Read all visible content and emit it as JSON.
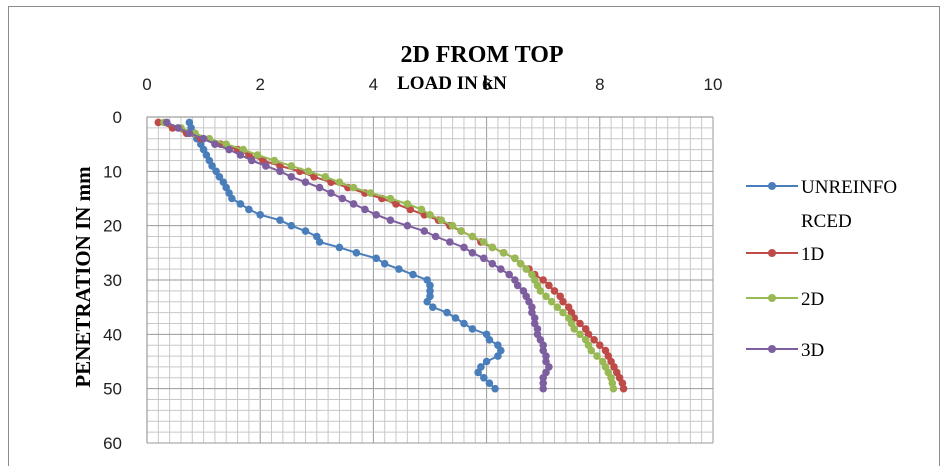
{
  "chart_data": {
    "type": "line",
    "title": "2D FROM TOP",
    "xlabel": "LOAD IN kN",
    "ylabel": "PENETRATION IN mm",
    "xlim": [
      0,
      10
    ],
    "ylim": [
      0,
      60
    ],
    "y_inverted": true,
    "x_axis_position": "top",
    "x_ticks": [
      "0",
      "2",
      "4",
      "6",
      "8",
      "10"
    ],
    "y_ticks": [
      "0",
      "10",
      "20",
      "30",
      "40",
      "50",
      "60"
    ],
    "grid": true,
    "legend_position": "right",
    "series": [
      {
        "name": "UNREINFORCED",
        "legend_lines": [
          "UNREINFO",
          "RCED"
        ],
        "color": "#4a7ebb",
        "points": [
          [
            0.75,
            1
          ],
          [
            0.78,
            2
          ],
          [
            0.82,
            3
          ],
          [
            0.88,
            4
          ],
          [
            0.95,
            5
          ],
          [
            1.0,
            6
          ],
          [
            1.05,
            7
          ],
          [
            1.1,
            8
          ],
          [
            1.15,
            9
          ],
          [
            1.22,
            10
          ],
          [
            1.28,
            11
          ],
          [
            1.35,
            12
          ],
          [
            1.4,
            13
          ],
          [
            1.45,
            14
          ],
          [
            1.5,
            15
          ],
          [
            1.65,
            16
          ],
          [
            1.8,
            17
          ],
          [
            2.0,
            18
          ],
          [
            2.35,
            19
          ],
          [
            2.55,
            20
          ],
          [
            2.8,
            21
          ],
          [
            3.0,
            22
          ],
          [
            3.05,
            23
          ],
          [
            3.4,
            24
          ],
          [
            3.7,
            25
          ],
          [
            4.05,
            26
          ],
          [
            4.2,
            27
          ],
          [
            4.45,
            28
          ],
          [
            4.7,
            29
          ],
          [
            4.95,
            30
          ],
          [
            5.0,
            31
          ],
          [
            5.0,
            32
          ],
          [
            5.0,
            33
          ],
          [
            4.95,
            34
          ],
          [
            5.05,
            35
          ],
          [
            5.3,
            36
          ],
          [
            5.45,
            37
          ],
          [
            5.6,
            38
          ],
          [
            5.75,
            39
          ],
          [
            6.0,
            40
          ],
          [
            6.05,
            41
          ],
          [
            6.2,
            42
          ],
          [
            6.25,
            43
          ],
          [
            6.2,
            44
          ],
          [
            6.0,
            45
          ],
          [
            5.9,
            46
          ],
          [
            5.85,
            47
          ],
          [
            5.95,
            48
          ],
          [
            6.05,
            49
          ],
          [
            6.15,
            50
          ]
        ]
      },
      {
        "name": "1D",
        "color": "#be4b48",
        "points": [
          [
            0.2,
            1
          ],
          [
            0.45,
            2
          ],
          [
            0.7,
            3
          ],
          [
            0.95,
            4
          ],
          [
            1.3,
            5
          ],
          [
            1.6,
            6
          ],
          [
            1.8,
            7
          ],
          [
            2.05,
            8
          ],
          [
            2.35,
            9
          ],
          [
            2.7,
            10
          ],
          [
            2.95,
            11
          ],
          [
            3.25,
            12
          ],
          [
            3.55,
            13
          ],
          [
            3.85,
            14
          ],
          [
            4.15,
            15
          ],
          [
            4.4,
            16
          ],
          [
            4.65,
            17
          ],
          [
            4.9,
            18
          ],
          [
            5.15,
            19
          ],
          [
            5.35,
            20
          ],
          [
            5.55,
            21
          ],
          [
            5.75,
            22
          ],
          [
            5.9,
            23
          ],
          [
            6.1,
            24
          ],
          [
            6.3,
            25
          ],
          [
            6.5,
            26
          ],
          [
            6.6,
            27
          ],
          [
            6.75,
            28
          ],
          [
            6.85,
            29
          ],
          [
            7.0,
            30
          ],
          [
            7.1,
            31
          ],
          [
            7.2,
            32
          ],
          [
            7.3,
            33
          ],
          [
            7.35,
            34
          ],
          [
            7.45,
            35
          ],
          [
            7.5,
            36
          ],
          [
            7.55,
            37
          ],
          [
            7.65,
            38
          ],
          [
            7.75,
            39
          ],
          [
            7.8,
            40
          ],
          [
            7.9,
            41
          ],
          [
            8.0,
            42
          ],
          [
            8.1,
            43
          ],
          [
            8.15,
            44
          ],
          [
            8.2,
            45
          ],
          [
            8.25,
            46
          ],
          [
            8.3,
            47
          ],
          [
            8.35,
            48
          ],
          [
            8.4,
            49
          ],
          [
            8.42,
            50
          ]
        ]
      },
      {
        "name": "2D",
        "color": "#98b954",
        "points": [
          [
            0.3,
            1
          ],
          [
            0.6,
            2
          ],
          [
            0.85,
            3
          ],
          [
            1.1,
            4
          ],
          [
            1.4,
            5
          ],
          [
            1.7,
            6
          ],
          [
            1.95,
            7
          ],
          [
            2.25,
            8
          ],
          [
            2.55,
            9
          ],
          [
            2.85,
            10
          ],
          [
            3.15,
            11
          ],
          [
            3.4,
            12
          ],
          [
            3.65,
            13
          ],
          [
            3.95,
            14
          ],
          [
            4.3,
            15
          ],
          [
            4.6,
            16
          ],
          [
            4.85,
            17
          ],
          [
            5.0,
            18
          ],
          [
            5.2,
            19
          ],
          [
            5.4,
            20
          ],
          [
            5.55,
            21
          ],
          [
            5.75,
            22
          ],
          [
            5.95,
            23
          ],
          [
            6.1,
            24
          ],
          [
            6.3,
            25
          ],
          [
            6.5,
            26
          ],
          [
            6.6,
            27
          ],
          [
            6.7,
            28
          ],
          [
            6.8,
            29
          ],
          [
            6.85,
            30
          ],
          [
            6.9,
            31
          ],
          [
            6.95,
            32
          ],
          [
            7.05,
            33
          ],
          [
            7.15,
            34
          ],
          [
            7.25,
            35
          ],
          [
            7.35,
            36
          ],
          [
            7.45,
            37
          ],
          [
            7.5,
            38
          ],
          [
            7.55,
            39
          ],
          [
            7.65,
            40
          ],
          [
            7.75,
            41
          ],
          [
            7.8,
            42
          ],
          [
            7.85,
            43
          ],
          [
            7.95,
            44
          ],
          [
            8.05,
            45
          ],
          [
            8.1,
            46
          ],
          [
            8.15,
            47
          ],
          [
            8.2,
            48
          ],
          [
            8.22,
            49
          ],
          [
            8.24,
            50
          ]
        ]
      },
      {
        "name": "3D",
        "color": "#7d5fa0",
        "points": [
          [
            0.35,
            1
          ],
          [
            0.55,
            2
          ],
          [
            0.75,
            3
          ],
          [
            1.0,
            4
          ],
          [
            1.2,
            5
          ],
          [
            1.45,
            6
          ],
          [
            1.65,
            7
          ],
          [
            1.85,
            8
          ],
          [
            2.1,
            9
          ],
          [
            2.35,
            10
          ],
          [
            2.55,
            11
          ],
          [
            2.8,
            12
          ],
          [
            3.05,
            13
          ],
          [
            3.25,
            14
          ],
          [
            3.45,
            15
          ],
          [
            3.65,
            16
          ],
          [
            3.85,
            17
          ],
          [
            4.05,
            18
          ],
          [
            4.3,
            19
          ],
          [
            4.6,
            20
          ],
          [
            4.9,
            21
          ],
          [
            5.1,
            22
          ],
          [
            5.35,
            23
          ],
          [
            5.6,
            24
          ],
          [
            5.75,
            25
          ],
          [
            5.95,
            26
          ],
          [
            6.1,
            27
          ],
          [
            6.25,
            28
          ],
          [
            6.4,
            29
          ],
          [
            6.5,
            30
          ],
          [
            6.55,
            31
          ],
          [
            6.65,
            32
          ],
          [
            6.7,
            33
          ],
          [
            6.75,
            34
          ],
          [
            6.8,
            35
          ],
          [
            6.8,
            36
          ],
          [
            6.85,
            37
          ],
          [
            6.85,
            38
          ],
          [
            6.9,
            39
          ],
          [
            6.9,
            40
          ],
          [
            6.95,
            41
          ],
          [
            7.0,
            42
          ],
          [
            7.0,
            43
          ],
          [
            7.05,
            44
          ],
          [
            7.05,
            45
          ],
          [
            7.1,
            46
          ],
          [
            7.05,
            47
          ],
          [
            7.0,
            48
          ],
          [
            7.0,
            49
          ],
          [
            7.0,
            50
          ]
        ]
      }
    ]
  }
}
